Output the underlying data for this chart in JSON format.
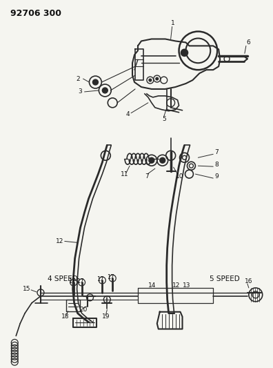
{
  "title": "92706 300",
  "bg_color": "#f5f5f0",
  "line_color": "#2a2a2a",
  "fig_width": 3.96,
  "fig_height": 5.33,
  "dpi": 100
}
